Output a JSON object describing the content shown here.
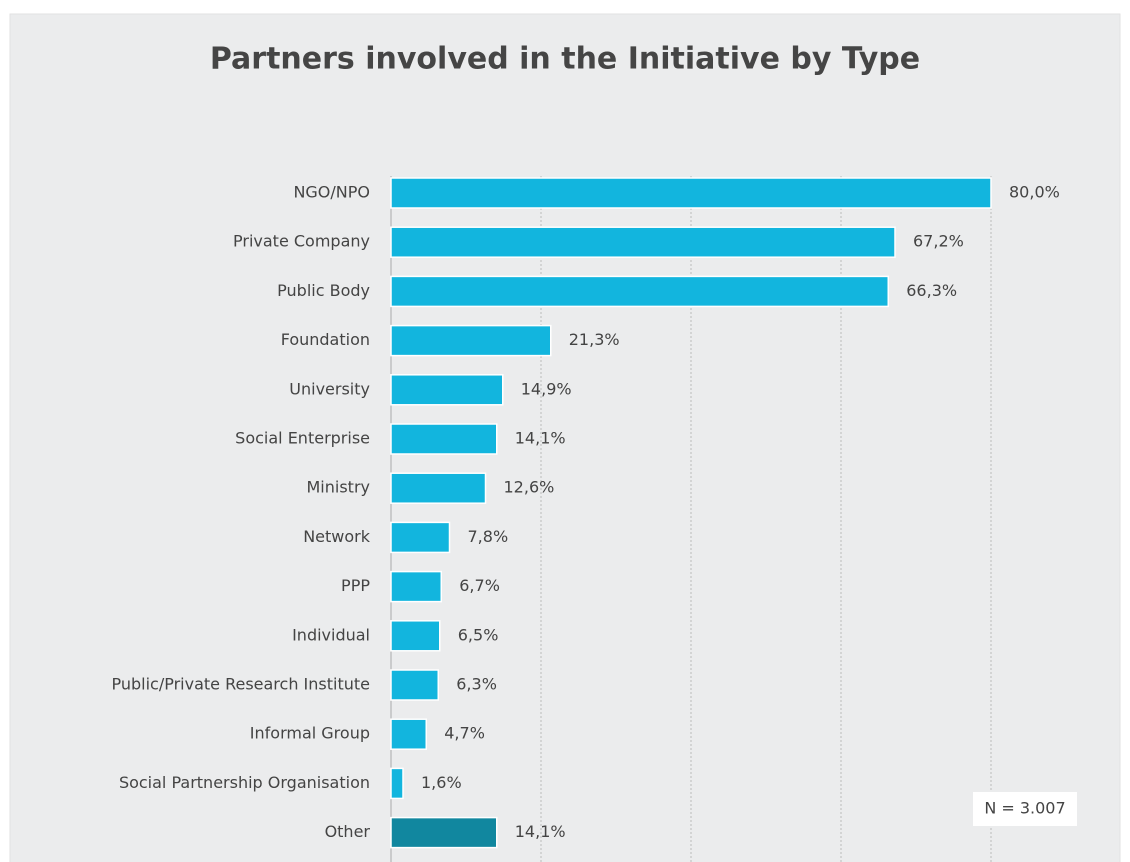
{
  "chart_data": {
    "type": "bar",
    "orientation": "horizontal",
    "title": "Partners involved in the Initiative by Type",
    "categories": [
      "NGO/NPO",
      "Private Company",
      "Public Body",
      "Foundation",
      "University",
      "Social Enterprise",
      "Ministry",
      "Network",
      "PPP",
      "Individual",
      "Public/Private Research Institute",
      "Informal Group",
      "Social Partnership Organisation",
      "Other"
    ],
    "values": [
      80.0,
      67.2,
      66.3,
      21.3,
      14.9,
      14.1,
      12.6,
      7.8,
      6.7,
      6.5,
      6.3,
      4.7,
      1.6,
      14.1
    ],
    "value_labels": [
      "80,0%",
      "67,2%",
      "66,3%",
      "21,3%",
      "14,9%",
      "14,1%",
      "12,6%",
      "7,8%",
      "6,7%",
      "6,5%",
      "6,3%",
      "4,7%",
      "1,6%",
      "14,1%"
    ],
    "colors": [
      "#12b5de",
      "#12b5de",
      "#12b5de",
      "#12b5de",
      "#12b5de",
      "#12b5de",
      "#12b5de",
      "#12b5de",
      "#12b5de",
      "#12b5de",
      "#12b5de",
      "#12b5de",
      "#12b5de",
      "#11879f"
    ],
    "xlim": [
      0,
      80
    ],
    "xticks": [
      0,
      20,
      40,
      60,
      80
    ],
    "grid": true,
    "annotation": "N = 3.007"
  }
}
